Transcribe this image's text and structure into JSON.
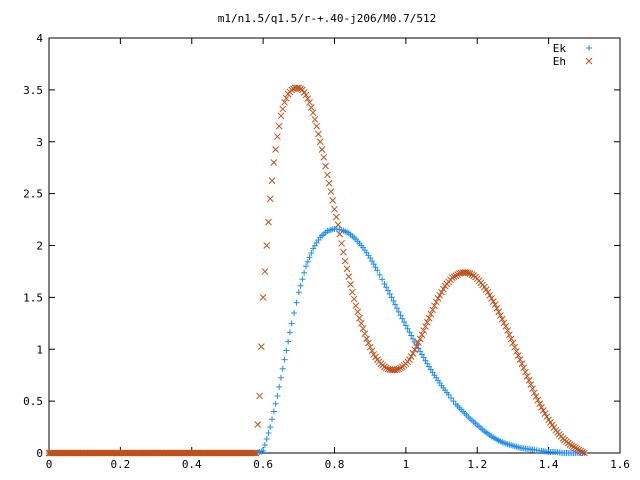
{
  "chart_data": {
    "type": "scatter",
    "title": "m1/n1.5/q1.5/r-+.40-j206/M0.7/512",
    "xlabel": "",
    "ylabel": "",
    "xlim": [
      0,
      1.6
    ],
    "ylim": [
      0,
      4
    ],
    "xticks": [
      "0",
      "0.2",
      "0.4",
      "0.6",
      "0.8",
      "1",
      "1.2",
      "1.4",
      "1.6"
    ],
    "yticks": [
      "0",
      "0.5",
      "1",
      "1.5",
      "2",
      "2.5",
      "3",
      "3.5",
      "4"
    ],
    "grid": false,
    "legend_position": "top-right",
    "series": [
      {
        "name": "Ek",
        "marker": "+",
        "color": "#1f8ff0",
        "x": [
          0.0,
          0.1,
          0.2,
          0.3,
          0.4,
          0.5,
          0.58,
          0.6,
          0.62,
          0.64,
          0.66,
          0.68,
          0.7,
          0.72,
          0.74,
          0.76,
          0.78,
          0.8,
          0.82,
          0.84,
          0.86,
          0.88,
          0.9,
          0.92,
          0.94,
          0.96,
          0.98,
          1.0,
          1.02,
          1.04,
          1.06,
          1.08,
          1.1,
          1.12,
          1.14,
          1.16,
          1.18,
          1.2,
          1.22,
          1.24,
          1.26,
          1.28,
          1.3,
          1.32,
          1.34,
          1.36,
          1.38,
          1.4,
          1.42,
          1.44,
          1.46,
          1.48,
          1.5
        ],
        "y": [
          0,
          0,
          0,
          0,
          0,
          0,
          0,
          0.02,
          0.25,
          0.55,
          0.9,
          1.25,
          1.55,
          1.8,
          1.97,
          2.08,
          2.14,
          2.16,
          2.15,
          2.12,
          2.06,
          1.98,
          1.88,
          1.76,
          1.63,
          1.5,
          1.36,
          1.23,
          1.1,
          0.98,
          0.86,
          0.75,
          0.65,
          0.56,
          0.47,
          0.4,
          0.33,
          0.27,
          0.21,
          0.16,
          0.12,
          0.09,
          0.07,
          0.05,
          0.04,
          0.03,
          0.02,
          0.01,
          0.01,
          0.0,
          0.0,
          0.0,
          0.0
        ]
      },
      {
        "name": "Eh",
        "marker": "x",
        "color": "#c0501a",
        "x": [
          0.0,
          0.1,
          0.2,
          0.3,
          0.4,
          0.5,
          0.58,
          0.59,
          0.6,
          0.61,
          0.62,
          0.63,
          0.64,
          0.65,
          0.66,
          0.67,
          0.68,
          0.69,
          0.7,
          0.71,
          0.72,
          0.73,
          0.74,
          0.75,
          0.76,
          0.77,
          0.78,
          0.79,
          0.8,
          0.81,
          0.82,
          0.83,
          0.84,
          0.85,
          0.86,
          0.87,
          0.88,
          0.89,
          0.9,
          0.91,
          0.92,
          0.93,
          0.94,
          0.95,
          0.96,
          0.97,
          0.98,
          0.99,
          1.0,
          1.01,
          1.02,
          1.03,
          1.04,
          1.05,
          1.06,
          1.07,
          1.08,
          1.09,
          1.1,
          1.11,
          1.12,
          1.13,
          1.14,
          1.15,
          1.16,
          1.17,
          1.18,
          1.19,
          1.2,
          1.21,
          1.22,
          1.23,
          1.24,
          1.25,
          1.26,
          1.27,
          1.28,
          1.29,
          1.3,
          1.31,
          1.32,
          1.33,
          1.34,
          1.35,
          1.36,
          1.37,
          1.38,
          1.39,
          1.4,
          1.41,
          1.42,
          1.43,
          1.44,
          1.45,
          1.46,
          1.47,
          1.48,
          1.49,
          1.5
        ],
        "y": [
          0,
          0,
          0,
          0,
          0,
          0,
          0,
          0.55,
          1.5,
          2.0,
          2.45,
          2.8,
          3.05,
          3.25,
          3.38,
          3.46,
          3.5,
          3.52,
          3.52,
          3.5,
          3.45,
          3.38,
          3.28,
          3.15,
          3.0,
          2.85,
          2.68,
          2.52,
          2.35,
          2.2,
          2.02,
          1.85,
          1.7,
          1.55,
          1.42,
          1.3,
          1.2,
          1.1,
          1.02,
          0.95,
          0.9,
          0.86,
          0.83,
          0.81,
          0.8,
          0.8,
          0.81,
          0.83,
          0.86,
          0.9,
          0.96,
          1.03,
          1.1,
          1.18,
          1.26,
          1.34,
          1.42,
          1.49,
          1.55,
          1.61,
          1.65,
          1.69,
          1.71,
          1.73,
          1.74,
          1.74,
          1.73,
          1.71,
          1.68,
          1.64,
          1.6,
          1.55,
          1.49,
          1.43,
          1.36,
          1.29,
          1.22,
          1.14,
          1.06,
          0.98,
          0.9,
          0.82,
          0.74,
          0.66,
          0.58,
          0.51,
          0.44,
          0.38,
          0.32,
          0.27,
          0.22,
          0.18,
          0.14,
          0.11,
          0.08,
          0.06,
          0.04,
          0.02,
          0.0
        ]
      }
    ]
  }
}
